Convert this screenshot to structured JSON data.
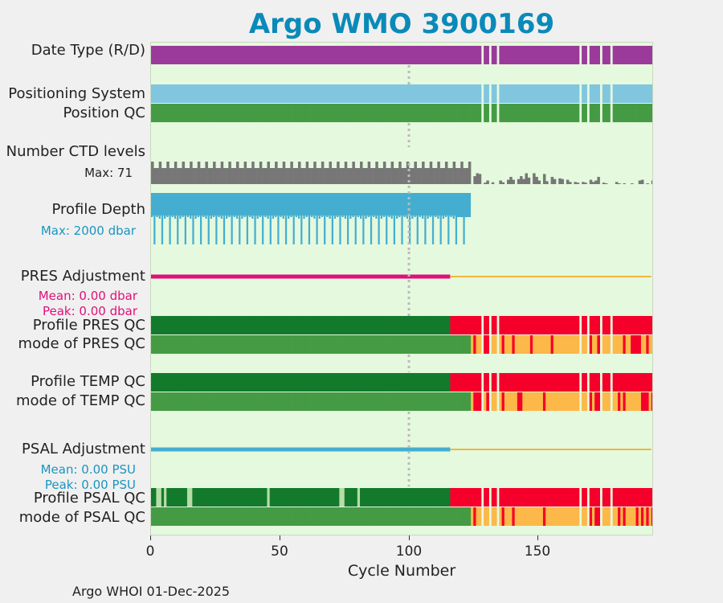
{
  "title": "Argo WMO 3900169",
  "footer": "Argo WHOI 01-Dec-2025",
  "colors": {
    "data_type": "#9b3a9b",
    "positioning": "#80c6df",
    "good_qc": "#459b44",
    "dark_good_qc": "#137a2c",
    "bad_qc": "#f5002a",
    "probably_bad_qc": "#fcb848",
    "ctd": "#777777",
    "depth": "#45aed0",
    "pres_adj": "#e0107a",
    "psal_adj": "#45aed0",
    "adj_line_after": "#f0b840",
    "background": "#e5f9de",
    "title": "#0a8ab8"
  },
  "labels": {
    "data_type": "Date Type (R/D)",
    "positioning_system": "Positioning System",
    "position_qc": "Position QC",
    "ctd_levels": "Number CTD levels",
    "ctd_max": "Max: 71",
    "profile_depth": "Profile Depth",
    "depth_max": "Max: 2000 dbar",
    "pres_adjustment": "PRES Adjustment",
    "pres_mean": "Mean: 0.00 dbar",
    "pres_peak": "Peak: 0.00 dbar",
    "profile_pres_qc": "Profile PRES QC",
    "mode_pres_qc": "mode of PRES QC",
    "profile_temp_qc": "Profile TEMP QC",
    "mode_temp_qc": "mode of TEMP QC",
    "psal_adjustment": "PSAL Adjustment",
    "psal_mean": "Mean: 0.00 PSU",
    "psal_peak": "Peak: 0.00 PSU",
    "profile_psal_qc": "Profile PSAL QC",
    "mode_psal_qc": "mode of PSAL QC"
  },
  "chart_data": {
    "type": "timeline",
    "title": "Argo WMO 3900169",
    "xlabel": "Cycle Number",
    "xlim": [
      0,
      195
    ],
    "xticks": [
      0,
      50,
      100,
      150
    ],
    "reference_line_x": 100,
    "gap_cycles": [
      128,
      131,
      134,
      166,
      169,
      174,
      178
    ],
    "last_d_cycle": 116,
    "last_good_mode_cycle": 124,
    "ctd_max_levels": 71,
    "ctd_levels_after": [
      {
        "x": 125,
        "v": 22
      },
      {
        "x": 126,
        "v": 30
      },
      {
        "x": 127,
        "v": 28
      },
      {
        "x": 129,
        "v": 4
      },
      {
        "x": 130,
        "v": 10
      },
      {
        "x": 132,
        "v": 5
      },
      {
        "x": 135,
        "v": 10
      },
      {
        "x": 136,
        "v": 5
      },
      {
        "x": 138,
        "v": 12
      },
      {
        "x": 139,
        "v": 20
      },
      {
        "x": 140,
        "v": 12
      },
      {
        "x": 142,
        "v": 14
      },
      {
        "x": 143,
        "v": 22
      },
      {
        "x": 144,
        "v": 14
      },
      {
        "x": 145,
        "v": 30
      },
      {
        "x": 146,
        "v": 18
      },
      {
        "x": 148,
        "v": 30
      },
      {
        "x": 149,
        "v": 20
      },
      {
        "x": 150,
        "v": 10
      },
      {
        "x": 152,
        "v": 28
      },
      {
        "x": 153,
        "v": 8
      },
      {
        "x": 155,
        "v": 20
      },
      {
        "x": 156,
        "v": 14
      },
      {
        "x": 158,
        "v": 16
      },
      {
        "x": 159,
        "v": 14
      },
      {
        "x": 161,
        "v": 12
      },
      {
        "x": 162,
        "v": 6
      },
      {
        "x": 164,
        "v": 6
      },
      {
        "x": 165,
        "v": 4
      },
      {
        "x": 167,
        "v": 6
      },
      {
        "x": 168,
        "v": 4
      },
      {
        "x": 170,
        "v": 12
      },
      {
        "x": 171,
        "v": 6
      },
      {
        "x": 172,
        "v": 10
      },
      {
        "x": 173,
        "v": 20
      },
      {
        "x": 175,
        "v": 4
      },
      {
        "x": 176,
        "v": 2
      },
      {
        "x": 180,
        "v": 6
      },
      {
        "x": 181,
        "v": 2
      },
      {
        "x": 183,
        "v": 2
      },
      {
        "x": 186,
        "v": 2
      },
      {
        "x": 189,
        "v": 10
      },
      {
        "x": 190,
        "v": 12
      },
      {
        "x": 192,
        "v": 2
      },
      {
        "x": 194,
        "v": 10
      }
    ],
    "pres_mode_probably_bad": [
      125,
      129,
      130,
      136,
      140,
      147,
      155,
      166,
      170,
      173,
      183,
      186,
      187,
      188,
      189,
      192
    ],
    "temp_mode_probably_bad": [
      125,
      126,
      127,
      130,
      136,
      142,
      143,
      152,
      170,
      172,
      173,
      181,
      183,
      190,
      191,
      192,
      194
    ],
    "psal_mode_probably_bad": [
      125,
      131,
      136,
      140,
      152,
      170,
      172,
      173,
      181,
      183,
      188,
      190,
      192,
      194
    ],
    "psal_profile_light_cycles": [
      2,
      3,
      5,
      14,
      15,
      45,
      73,
      74,
      80
    ],
    "pres_adjustment": {
      "mean": 0.0,
      "peak": 0.0,
      "unit": "dbar"
    },
    "psal_adjustment": {
      "mean": 0.0,
      "peak": 0.0,
      "unit": "PSU"
    },
    "profile_depth_max_dbar": 2000
  },
  "axis": {
    "xlabel": "Cycle Number",
    "ticks": [
      "0",
      "50",
      "100",
      "150"
    ]
  }
}
